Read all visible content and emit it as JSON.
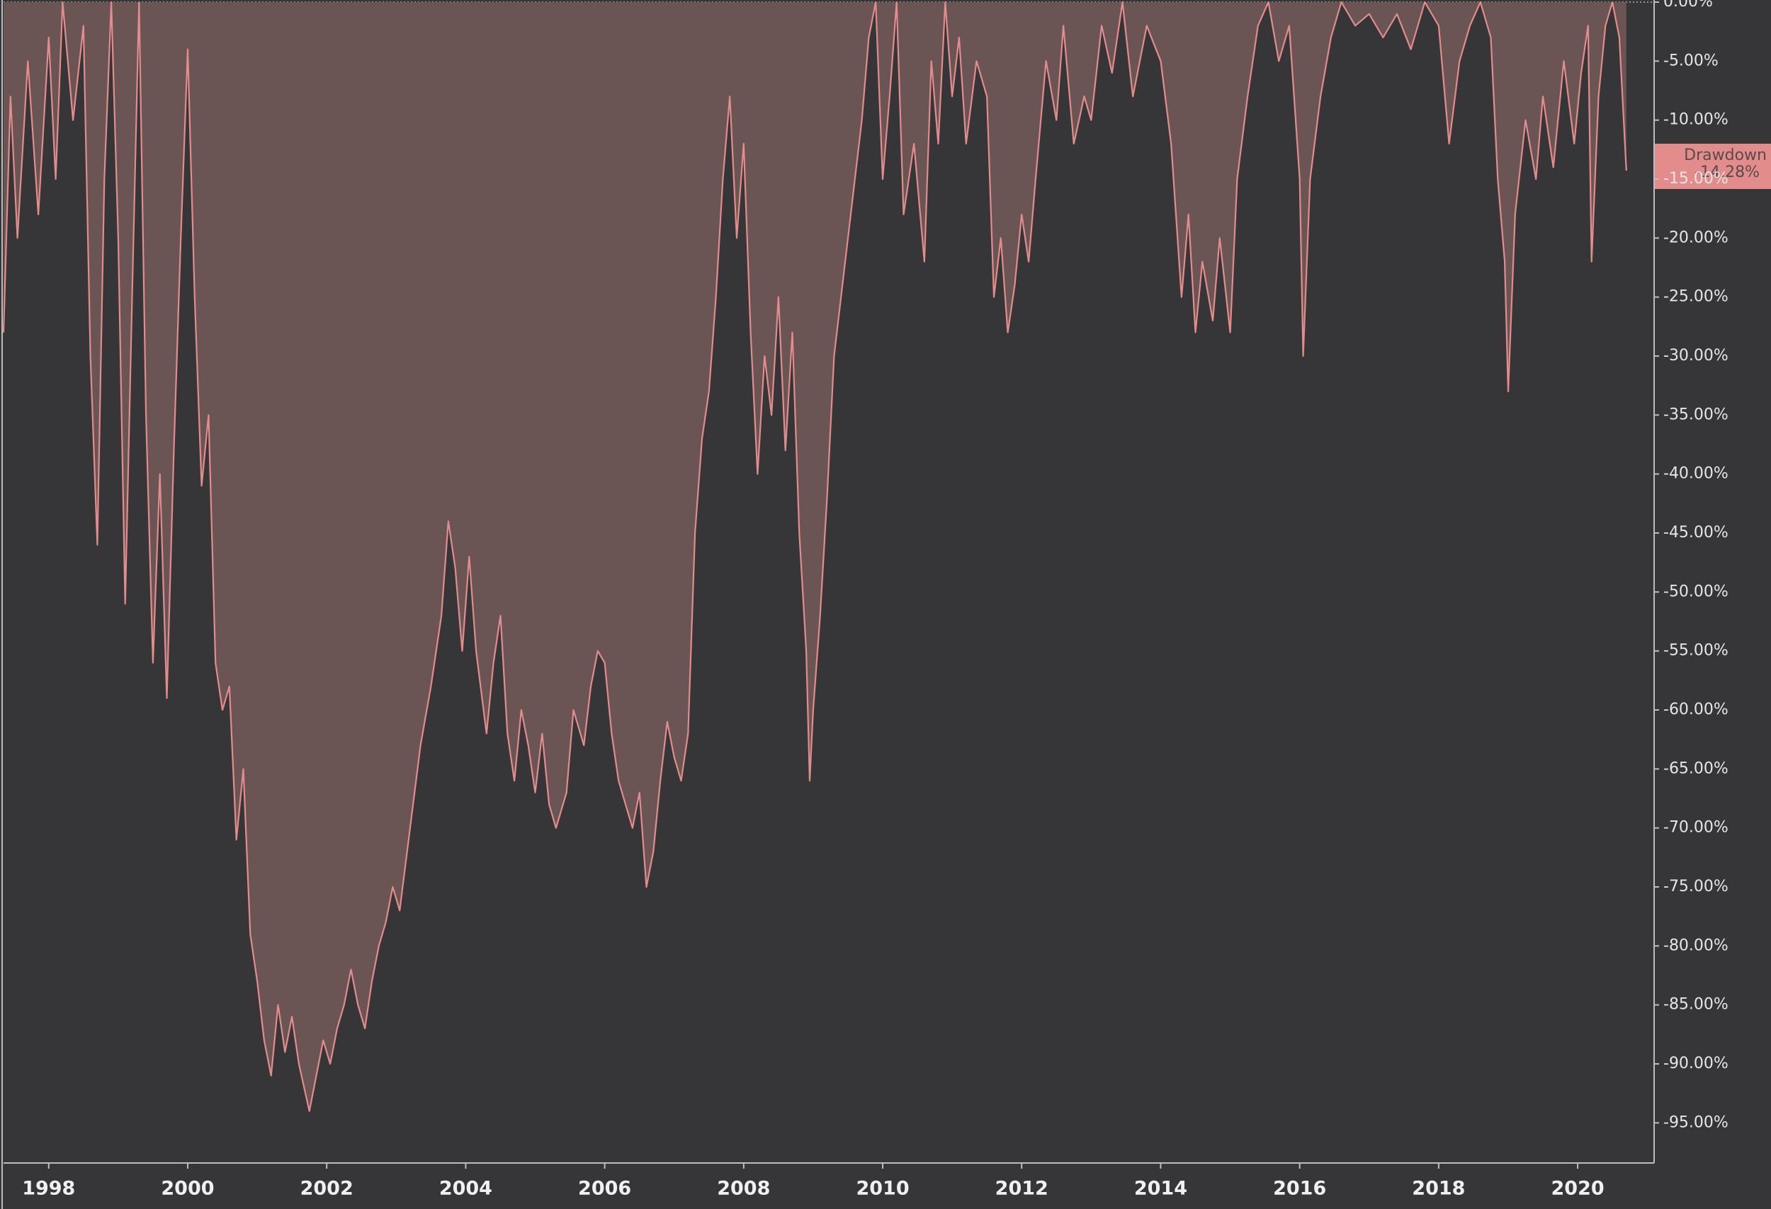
{
  "chart_data": {
    "type": "area",
    "x": [
      1997.35,
      1997.45,
      1997.55,
      1997.7,
      1997.85,
      1998.0,
      1998.1,
      1998.2,
      1998.35,
      1998.5,
      1998.6,
      1998.7,
      1998.8,
      1998.9,
      1999.0,
      1999.1,
      1999.2,
      1999.3,
      1999.4,
      1999.5,
      1999.6,
      1999.7,
      1999.8,
      1999.9,
      2000.0,
      2000.1,
      2000.2,
      2000.3,
      2000.4,
      2000.5,
      2000.6,
      2000.7,
      2000.8,
      2000.9,
      2001.0,
      2001.1,
      2001.2,
      2001.3,
      2001.4,
      2001.5,
      2001.6,
      2001.75,
      2001.85,
      2001.95,
      2002.05,
      2002.15,
      2002.25,
      2002.35,
      2002.45,
      2002.55,
      2002.65,
      2002.75,
      2002.85,
      2002.95,
      2003.05,
      2003.2,
      2003.35,
      2003.5,
      2003.65,
      2003.75,
      2003.85,
      2003.95,
      2004.05,
      2004.15,
      2004.3,
      2004.4,
      2004.5,
      2004.6,
      2004.7,
      2004.8,
      2004.9,
      2005.0,
      2005.1,
      2005.2,
      2005.3,
      2005.45,
      2005.55,
      2005.7,
      2005.8,
      2005.9,
      2006.0,
      2006.1,
      2006.2,
      2006.3,
      2006.4,
      2006.5,
      2006.6,
      2006.7,
      2006.8,
      2006.9,
      2007.0,
      2007.1,
      2007.2,
      2007.3,
      2007.4,
      2007.5,
      2007.6,
      2007.7,
      2007.8,
      2007.9,
      2008.0,
      2008.1,
      2008.2,
      2008.3,
      2008.4,
      2008.5,
      2008.6,
      2008.7,
      2008.8,
      2008.9,
      2008.95,
      2009.0,
      2009.1,
      2009.2,
      2009.3,
      2009.4,
      2009.5,
      2009.6,
      2009.7,
      2009.8,
      2009.9,
      2010.0,
      2010.1,
      2010.2,
      2010.3,
      2010.45,
      2010.6,
      2010.7,
      2010.8,
      2010.9,
      2011.0,
      2011.1,
      2011.2,
      2011.35,
      2011.5,
      2011.6,
      2011.7,
      2011.8,
      2011.9,
      2012.0,
      2012.1,
      2012.2,
      2012.35,
      2012.5,
      2012.6,
      2012.75,
      2012.9,
      2013.0,
      2013.15,
      2013.3,
      2013.45,
      2013.6,
      2013.8,
      2014.0,
      2014.15,
      2014.3,
      2014.4,
      2014.5,
      2014.6,
      2014.75,
      2014.85,
      2015.0,
      2015.1,
      2015.25,
      2015.4,
      2015.55,
      2015.7,
      2015.85,
      2016.0,
      2016.05,
      2016.15,
      2016.3,
      2016.45,
      2016.6,
      2016.8,
      2017.0,
      2017.2,
      2017.4,
      2017.6,
      2017.8,
      2018.0,
      2018.15,
      2018.3,
      2018.45,
      2018.6,
      2018.75,
      2018.85,
      2018.95,
      2019.0,
      2019.1,
      2019.25,
      2019.4,
      2019.5,
      2019.65,
      2019.8,
      2019.95,
      2020.05,
      2020.15,
      2020.2,
      2020.3,
      2020.4,
      2020.5,
      2020.6,
      2020.7
    ],
    "series": [
      {
        "name": "Drawdown",
        "color": "#e38c8c",
        "fill": "#6b5454",
        "values": [
          -28,
          -8,
          -20,
          -5,
          -18,
          -3,
          -15,
          0,
          -10,
          -2,
          -30,
          -46,
          -15,
          0,
          -20,
          -51,
          -25,
          0,
          -35,
          -56,
          -40,
          -59,
          -38,
          -20,
          -4,
          -25,
          -41,
          -35,
          -56,
          -60,
          -58,
          -71,
          -65,
          -79,
          -83,
          -88,
          -91,
          -85,
          -89,
          -86,
          -90,
          -94,
          -91,
          -88,
          -90,
          -87,
          -85,
          -82,
          -85,
          -87,
          -83,
          -80,
          -78,
          -75,
          -77,
          -70,
          -63,
          -58,
          -52,
          -44,
          -48,
          -55,
          -47,
          -55,
          -62,
          -56,
          -52,
          -62,
          -66,
          -60,
          -63,
          -67,
          -62,
          -68,
          -70,
          -67,
          -60,
          -63,
          -58,
          -55,
          -56,
          -62,
          -66,
          -68,
          -70,
          -67,
          -75,
          -72,
          -66,
          -61,
          -64,
          -66,
          -62,
          -45,
          -37,
          -33,
          -25,
          -15,
          -8,
          -20,
          -12,
          -28,
          -40,
          -30,
          -35,
          -25,
          -38,
          -28,
          -45,
          -55,
          -66,
          -60,
          -52,
          -42,
          -30,
          -25,
          -20,
          -15,
          -10,
          -3,
          0,
          -15,
          -8,
          0,
          -18,
          -12,
          -22,
          -5,
          -12,
          0,
          -8,
          -3,
          -12,
          -5,
          -8,
          -25,
          -20,
          -28,
          -24,
          -18,
          -22,
          -15,
          -5,
          -10,
          -2,
          -12,
          -8,
          -10,
          -2,
          -6,
          0,
          -8,
          -2,
          -5,
          -12,
          -25,
          -18,
          -28,
          -22,
          -27,
          -20,
          -28,
          -15,
          -8,
          -2,
          0,
          -5,
          -2,
          -15,
          -30,
          -15,
          -8,
          -3,
          0,
          -2,
          -1,
          -3,
          -1,
          -4,
          0,
          -2,
          -12,
          -5,
          -2,
          0,
          -3,
          -15,
          -22,
          -33,
          -18,
          -10,
          -15,
          -8,
          -14,
          -5,
          -12,
          -6,
          -2,
          -22,
          -8,
          -2,
          0,
          -3,
          -14.28
        ]
      }
    ],
    "last_label": "-14.28%",
    "xlim": [
      1997.35,
      2021.1
    ],
    "xticks": [
      1998,
      2000,
      2002,
      2004,
      2006,
      2008,
      2010,
      2012,
      2014,
      2016,
      2018,
      2020
    ],
    "ylim": [
      -98.4,
      0
    ],
    "yticks": [
      {
        "value": 0,
        "label": "0.00%"
      },
      {
        "value": -5,
        "label": "-5.00%"
      },
      {
        "value": -10,
        "label": "-10.00%"
      },
      {
        "value": -15,
        "label": "-15.00%"
      },
      {
        "value": -20,
        "label": "-20.00%"
      },
      {
        "value": -25,
        "label": "-25.00%"
      },
      {
        "value": -30,
        "label": "-30.00%"
      },
      {
        "value": -35,
        "label": "-35.00%"
      },
      {
        "value": -40,
        "label": "-40.00%"
      },
      {
        "value": -45,
        "label": "-45.00%"
      },
      {
        "value": -50,
        "label": "-50.00%"
      },
      {
        "value": -55,
        "label": "-55.00%"
      },
      {
        "value": -60,
        "label": "-60.00%"
      },
      {
        "value": -65,
        "label": "-65.00%"
      },
      {
        "value": -70,
        "label": "-70.00%"
      },
      {
        "value": -75,
        "label": "-75.00%"
      },
      {
        "value": -80,
        "label": "-80.00%"
      },
      {
        "value": -85,
        "label": "-85.00%"
      },
      {
        "value": -90,
        "label": "-90.00%"
      },
      {
        "value": -95,
        "label": "-95.00%"
      }
    ]
  }
}
